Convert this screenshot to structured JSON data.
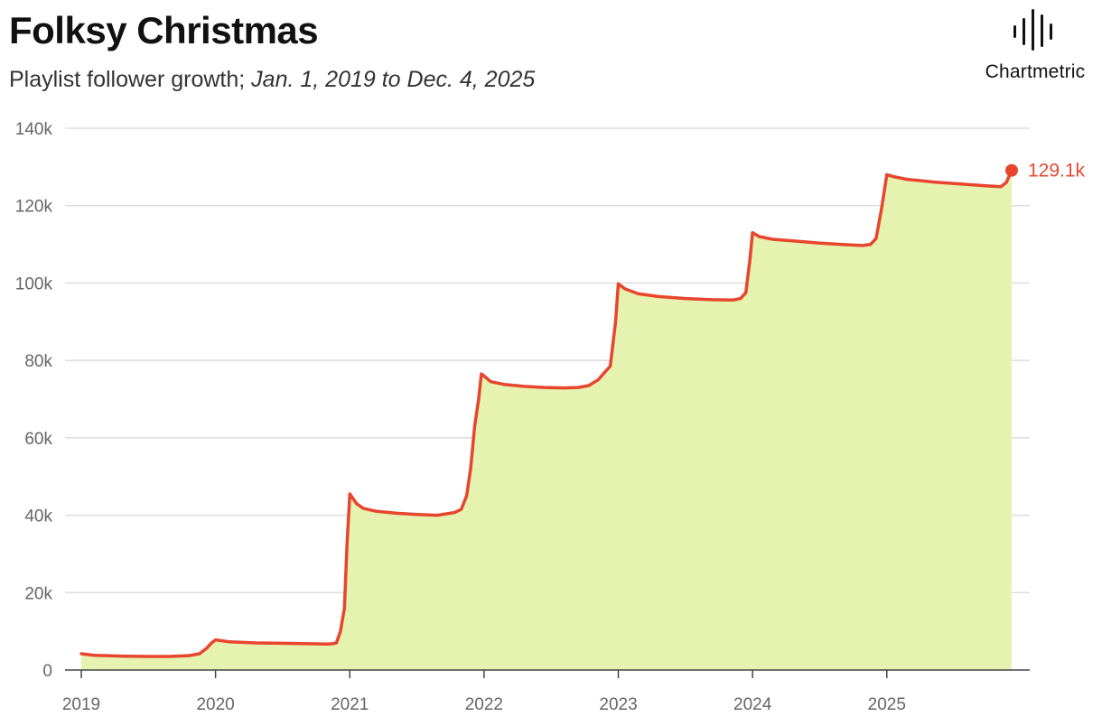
{
  "header": {
    "title": "Folksy Christmas",
    "subtitle_prefix": "Playlist follower growth;",
    "subtitle_range": "Jan. 1, 2019 to Dec. 4, 2025"
  },
  "logo": {
    "text": "Chartmetric",
    "icon": "soundwave-bars-icon"
  },
  "colors": {
    "line": "#e8452f",
    "area": "#e6f2b0",
    "grid": "#dddddd",
    "axis": "#444444",
    "end_label": "#e34a33"
  },
  "chart_data": {
    "type": "area",
    "title": "Folksy Christmas",
    "xlabel": "",
    "ylabel": "",
    "xlim": [
      2019.0,
      2025.93
    ],
    "ylim": [
      0,
      140000
    ],
    "x_ticks": [
      2019,
      2020,
      2021,
      2022,
      2023,
      2024,
      2025
    ],
    "x_tick_labels": [
      "2019",
      "2020",
      "2021",
      "2022",
      "2023",
      "2024",
      "2025"
    ],
    "y_ticks": [
      0,
      20000,
      40000,
      60000,
      80000,
      100000,
      120000,
      140000
    ],
    "y_tick_labels": [
      "0",
      "20k",
      "40k",
      "60k",
      "80k",
      "100k",
      "120k",
      "140k"
    ],
    "grid": true,
    "end_label": "129.1k",
    "series": [
      {
        "x": [
          2019.0,
          2019.1,
          2019.3,
          2019.5,
          2019.65,
          2019.8,
          2019.88,
          2019.93,
          2019.97,
          2020.0,
          2020.1,
          2020.3,
          2020.5,
          2020.7,
          2020.83,
          2020.87,
          2020.9,
          2020.93,
          2020.96,
          2020.98,
          2021.0,
          2021.05,
          2021.1,
          2021.2,
          2021.35,
          2021.5,
          2021.65,
          2021.78,
          2021.83,
          2021.87,
          2021.9,
          2021.93,
          2021.96,
          2021.98,
          2022.0,
          2022.05,
          2022.15,
          2022.3,
          2022.45,
          2022.6,
          2022.7,
          2022.78,
          2022.85,
          2022.9,
          2022.94,
          2022.98,
          2023.0,
          2023.05,
          2023.15,
          2023.3,
          2023.5,
          2023.7,
          2023.85,
          2023.91,
          2023.95,
          2023.98,
          2024.0,
          2024.05,
          2024.15,
          2024.3,
          2024.5,
          2024.7,
          2024.82,
          2024.88,
          2024.92,
          2024.96,
          2025.0,
          2025.05,
          2025.15,
          2025.35,
          2025.55,
          2025.75,
          2025.85,
          2025.89,
          2025.93
        ],
        "values": [
          4200,
          3800,
          3600,
          3500,
          3500,
          3700,
          4200,
          5500,
          7000,
          7800,
          7300,
          7000,
          6900,
          6800,
          6700,
          6800,
          7000,
          10000,
          16000,
          33000,
          45500,
          43000,
          41800,
          41000,
          40500,
          40200,
          40000,
          40700,
          41500,
          45000,
          52000,
          63000,
          70000,
          76500,
          76000,
          74500,
          73800,
          73300,
          73000,
          72900,
          73000,
          73500,
          75000,
          77000,
          78500,
          90000,
          99800,
          98500,
          97200,
          96500,
          96000,
          95700,
          95600,
          96000,
          97500,
          106000,
          113000,
          112000,
          111300,
          110900,
          110300,
          109900,
          109700,
          110000,
          111500,
          119000,
          128000,
          127500,
          126800,
          126100,
          125600,
          125100,
          124900,
          126000,
          129100
        ]
      }
    ]
  }
}
